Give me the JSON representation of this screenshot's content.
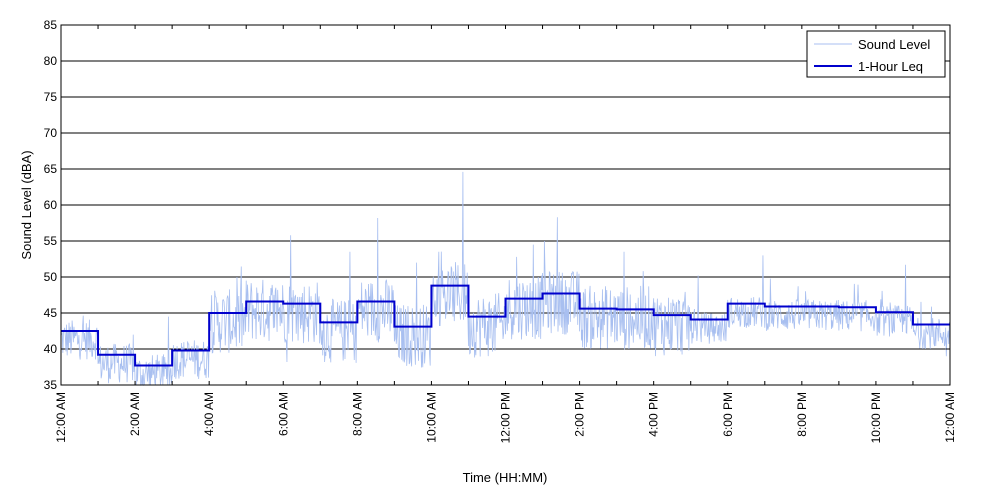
{
  "chart_data": {
    "type": "line",
    "title": "",
    "xlabel": "Time (HH:MM)",
    "ylabel": "Sound Level (dBA)",
    "ylim": [
      35,
      85
    ],
    "yticks": [
      35,
      40,
      45,
      50,
      55,
      60,
      65,
      70,
      75,
      80,
      85
    ],
    "xlim": [
      0,
      24
    ],
    "xtick_labels": [
      "12:00 AM",
      "2:00 AM",
      "4:00 AM",
      "6:00 AM",
      "8:00 AM",
      "10:00 AM",
      "12:00 PM",
      "2:00 PM",
      "4:00 PM",
      "6:00 PM",
      "8:00 PM",
      "10:00 PM",
      "12:00 AM"
    ],
    "grid": "horizontal",
    "legend_position": "top-right",
    "colors": {
      "sound_level": "#a8bff0",
      "leq": "#0000cc"
    },
    "series": [
      {
        "name": "Sound Level",
        "style": "thin-noisy-line",
        "spikes": [
          {
            "x": 4.75,
            "y": 50.0
          },
          {
            "x": 6.2,
            "y": 55.8
          },
          {
            "x": 7.8,
            "y": 53.5
          },
          {
            "x": 8.55,
            "y": 58.2
          },
          {
            "x": 9.6,
            "y": 52.0
          },
          {
            "x": 10.85,
            "y": 64.6
          },
          {
            "x": 10.2,
            "y": 53.5
          },
          {
            "x": 12.3,
            "y": 52.8
          },
          {
            "x": 12.75,
            "y": 54.5
          },
          {
            "x": 13.05,
            "y": 55.0
          },
          {
            "x": 13.4,
            "y": 58.3
          },
          {
            "x": 15.2,
            "y": 53.5
          },
          {
            "x": 17.2,
            "y": 50.2
          },
          {
            "x": 18.95,
            "y": 53.0
          },
          {
            "x": 22.8,
            "y": 51.7
          },
          {
            "x": 23.9,
            "y": 39.0
          },
          {
            "x": 1.4,
            "y": 38.0
          },
          {
            "x": 2.0,
            "y": 35.2
          },
          {
            "x": 2.9,
            "y": 44.5
          },
          {
            "x": 6.1,
            "y": 38.2
          },
          {
            "x": 9.2,
            "y": 38.5
          }
        ]
      },
      {
        "name": "1-Hour Leq",
        "style": "step",
        "hours": [
          0,
          1,
          2,
          3,
          4,
          5,
          6,
          7,
          8,
          9,
          10,
          11,
          12,
          13,
          14,
          15,
          16,
          17,
          18,
          19,
          20,
          21,
          22,
          23
        ],
        "values": [
          42.5,
          39.2,
          37.7,
          39.8,
          45.0,
          46.6,
          46.3,
          43.7,
          46.6,
          43.1,
          48.8,
          44.5,
          47.0,
          47.7,
          45.6,
          45.5,
          44.7,
          44.1,
          46.3,
          45.9,
          45.9,
          45.8,
          45.1,
          43.4
        ]
      }
    ]
  }
}
